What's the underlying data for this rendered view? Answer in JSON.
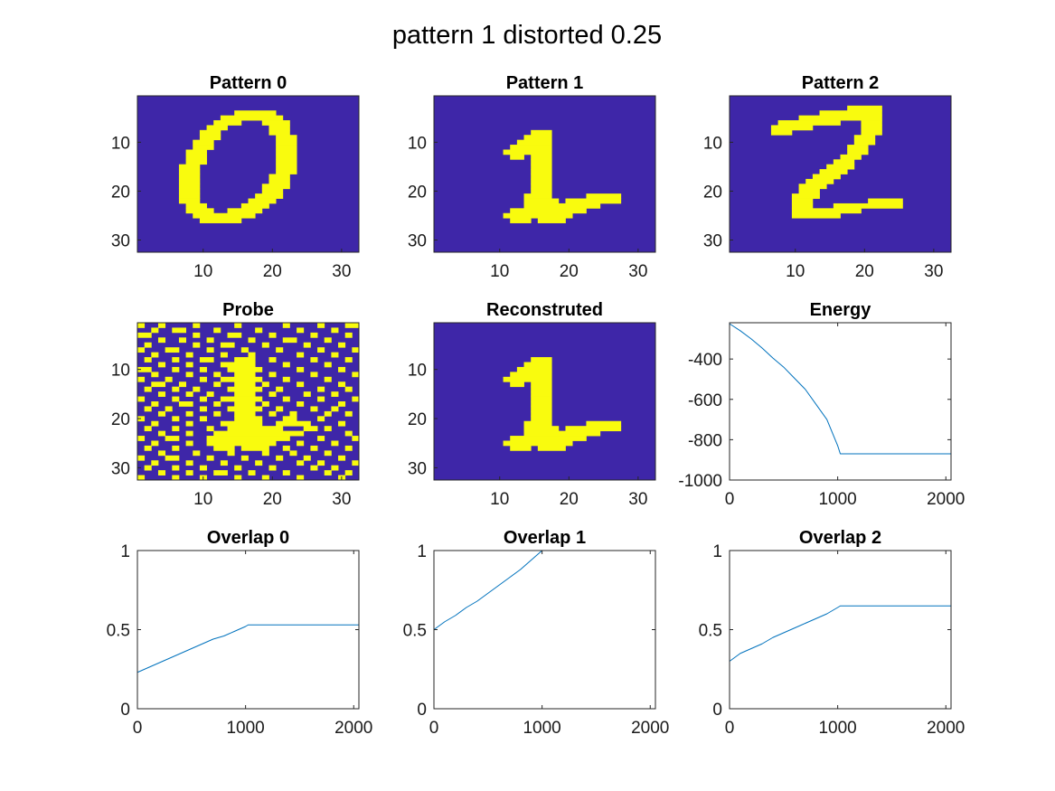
{
  "figure": {
    "title": "pattern 1 distorted 0.25",
    "colors": {
      "cell_on": "#f9fb0e",
      "cell_off": "#3e26a8",
      "line": "#0072bd",
      "axis": "#262626"
    }
  },
  "chart_data": [
    {
      "type": "heatmap",
      "title": "Pattern 0",
      "grid_size": [
        32,
        32
      ],
      "xticks": [
        10,
        20,
        30
      ],
      "yticks": [
        10,
        20,
        30
      ],
      "on_cells": "y4:15-20,y5:13-21,y6:12-15,y6:19-22,y7:11-13,y7:20-22,y8:10-12,y8:20-22,y9:10-12,y9:21-23,y10:9-11,y10:21-23,y11:9-11,y11:21-23,y12:8-10,y12:21-23,y13:8-10,y13:21-23,y14:8-10,y14:21-23,y15:7-9,y15:21-23,y16:7-9,y16:21-23,y17:7-9,y17:20-22,y18:7-9,y18:20-22,y19:7-9,y19:19-22,y20:7-9,y20:19-21,y21:7-9,y21:18-21,y22:7-9,y22:17-20,y23:8-10,y23:16-19,y24:8-11,y24:14-18,y25:9-17,y26:10-15"
    },
    {
      "type": "heatmap",
      "title": "Pattern 1",
      "grid_size": [
        32,
        32
      ],
      "xticks": [
        10,
        20,
        30
      ],
      "yticks": [
        10,
        20,
        30
      ],
      "on_cells": "y8:15-17,y9:14-17,y10:13-17,y11:12-17,y12:11-17,y13:12-13,y13:15-17,y14:15-17,y15:15-17,y16:15-17,y17:15-17,y18:15-17,y19:15-17,y20:15-17,y21:14-17,y21:23-27,y22:14-18,y22:20-27,y23:14-24,y24:12-22,y25:11-20,y26:12-14,y26:16-19"
    },
    {
      "type": "heatmap",
      "title": "Pattern 2",
      "grid_size": [
        32,
        32
      ],
      "xticks": [
        10,
        20,
        30
      ],
      "yticks": [
        10,
        20,
        30
      ],
      "on_cells": "y3:18-22,y4:14-22,y5:11-22,y6:8-16,y6:20-22,y7:7-12,y7:20-22,y8:7-9,y8:20-22,y9:19-21,y10:19-21,y11:18-20,y12:18-20,y13:17-19,y14:16-18,y15:15-18,y16:14-17,y17:13-16,y18:12-15,y19:11-14,y20:11-13,y21:10-13,y22:10-12,y22:21-25,y23:10-12,y23:16-25,y24:10-19,y25:10-16"
    },
    {
      "type": "heatmap",
      "title": "Probe",
      "grid_size": [
        32,
        32
      ],
      "xticks": [
        10,
        20,
        30
      ],
      "yticks": [
        10,
        20,
        30
      ],
      "on_cells": "y1:1,y1:4,y1:9,y1:15,y1:22,y1:27,y1:31-32,y2:3,y2:6-7,y2:12,y2:18,y2:24,y2:29,y3:1-2,y3:9,y3:14-15,y3:20,y3:26,y3:31,y4:4,y4:7,y4:11,y4:17,y4:22-23,y4:28,y5:2,y5:9,y5:13-14,y5:19,y5:25,y5:30,y6:1,y6:5-6,y6:11,y6:16,y6:21,y6:27,y6:32,y7:3,y7:8,y7:13,y7:17,y7:24,y7:29,y8:2,y8:6,y8:10-11,y8:15-17,y8:20,y8:26,y8:31,y9:4,y9:8,y9:13-17,y9:22,y9:28,y10:1-2,y10:6,y10:10,y10:14-18,y10:24,y10:30,y11:3,y11:8,y11:12,y11:15-17,y11:20,y11:26,y11:32,y12:1,y12:5,y12:10,y12:13-18,y12:22,y12:28,y13:3-4,y13:7,y13:12,y13:15-17,y13:19,y13:24,y13:30,y14:2,y14:6,y14:9,y14:14-18,y14:21,y14:27,y14:31,y15:4,y15:8,y15:11,y15:15-17,y15:20,y15:25,y15:29,y16:1,y16:6,y16:10,y16:13-18,y16:22,y16:27,y16:32,y17:3,y17:7-8,y17:12,y17:15-17,y17:19,y17:24,y17:30,y18:2,y18:5,y18:10,y18:14-18,y18:21,y18:26,y18:29,y19:4,y19:8,y19:12,y19:15-17,y19:20,y19:23,y19:28,y19:31,y20:1,y20:6,y20:10,y20:15-18,y20:22-23,y20:27,y21:3,y21:8,y21:13-18,y21:21-25,y21:30,y22:2,y22:6,y22:11,y22:14-21,y22:25-26,y22:28,y23:4,y23:8,y23:12-24,y23:31,y24:1,y24:5-6,y24:11-22,y24:27,y24:32,y25:3,y25:8,y25:11-20,y25:24,y25:29,y26:2,y26:6,y26:12-14,y26:16-19,y26:22,y26:26,y26:31,y27:4,y27:9,y27:14,y27:19,y27:23,y27:28,y28:1,y28:5-6,y28:11,y28:16,y28:21,y28:25,y28:30,y29:3,y29:8,y29:13,y29:18,y29:24,y29:27,y29:32,y30:2,y30:6,y30:10,y30:15,y30:20,y30:26,y30:29,y31:4,y31:8,y31:12-13,y31:17,y31:22,y31:28,y31:31,y32:1,y32:6,y32:10,y32:15,y32:19,y32:24,y32:30"
    },
    {
      "type": "heatmap",
      "title": "Reconstruted",
      "grid_size": [
        32,
        32
      ],
      "xticks": [
        10,
        20,
        30
      ],
      "yticks": [
        10,
        20,
        30
      ],
      "on_cells": "y8:15-17,y9:14-17,y10:13-17,y11:12-17,y12:11-17,y13:12-13,y13:15-17,y14:15-17,y15:15-17,y16:15-17,y17:15-17,y18:15-17,y19:15-17,y20:15-17,y21:14-17,y21:23-27,y22:14-18,y22:20-27,y23:14-24,y24:12-22,y25:11-20,y26:12-14,y26:16-19"
    },
    {
      "type": "line",
      "title": "Energy",
      "xlim": [
        0,
        2048
      ],
      "ylim": [
        -1000,
        -220
      ],
      "xticks": [
        0,
        1000,
        2000
      ],
      "yticks": [
        -400,
        -600,
        -800,
        -1000
      ],
      "x": [
        0,
        100,
        200,
        300,
        400,
        500,
        600,
        700,
        800,
        900,
        1000,
        1024,
        1100,
        1200,
        1400,
        1600,
        1800,
        2048
      ],
      "y": [
        -225,
        -260,
        -300,
        -345,
        -395,
        -440,
        -495,
        -550,
        -625,
        -700,
        -830,
        -870,
        -870,
        -870,
        -870,
        -870,
        -870,
        -870
      ]
    },
    {
      "type": "line",
      "title": "Overlap 0",
      "xlim": [
        0,
        2048
      ],
      "ylim": [
        0,
        1
      ],
      "xticks": [
        0,
        1000,
        2000
      ],
      "yticks": [
        0,
        0.5,
        1
      ],
      "x": [
        0,
        100,
        200,
        300,
        400,
        500,
        600,
        700,
        800,
        900,
        1000,
        1024,
        1200,
        1400,
        1600,
        1800,
        2048
      ],
      "y": [
        0.23,
        0.26,
        0.29,
        0.32,
        0.35,
        0.38,
        0.41,
        0.44,
        0.46,
        0.49,
        0.52,
        0.53,
        0.53,
        0.53,
        0.53,
        0.53,
        0.53
      ]
    },
    {
      "type": "line",
      "title": "Overlap 1",
      "xlim": [
        0,
        2048
      ],
      "ylim": [
        0,
        1
      ],
      "xticks": [
        0,
        1000,
        2000
      ],
      "yticks": [
        0,
        0.5,
        1
      ],
      "x": [
        0,
        100,
        200,
        300,
        400,
        500,
        600,
        700,
        800,
        900,
        1000,
        1024,
        1200,
        1400,
        1600,
        1800,
        2048
      ],
      "y": [
        0.5,
        0.55,
        0.59,
        0.64,
        0.68,
        0.73,
        0.78,
        0.83,
        0.88,
        0.94,
        1,
        1,
        1,
        1,
        1,
        1,
        1
      ]
    },
    {
      "type": "line",
      "title": "Overlap 2",
      "xlim": [
        0,
        2048
      ],
      "ylim": [
        0,
        1
      ],
      "xticks": [
        0,
        1000,
        2000
      ],
      "yticks": [
        0,
        0.5,
        1
      ],
      "x": [
        0,
        100,
        200,
        300,
        400,
        500,
        600,
        700,
        800,
        900,
        1000,
        1024,
        1200,
        1400,
        1600,
        1800,
        2048
      ],
      "y": [
        0.3,
        0.35,
        0.38,
        0.41,
        0.45,
        0.48,
        0.51,
        0.54,
        0.57,
        0.6,
        0.64,
        0.65,
        0.65,
        0.65,
        0.65,
        0.65,
        0.65
      ]
    }
  ]
}
